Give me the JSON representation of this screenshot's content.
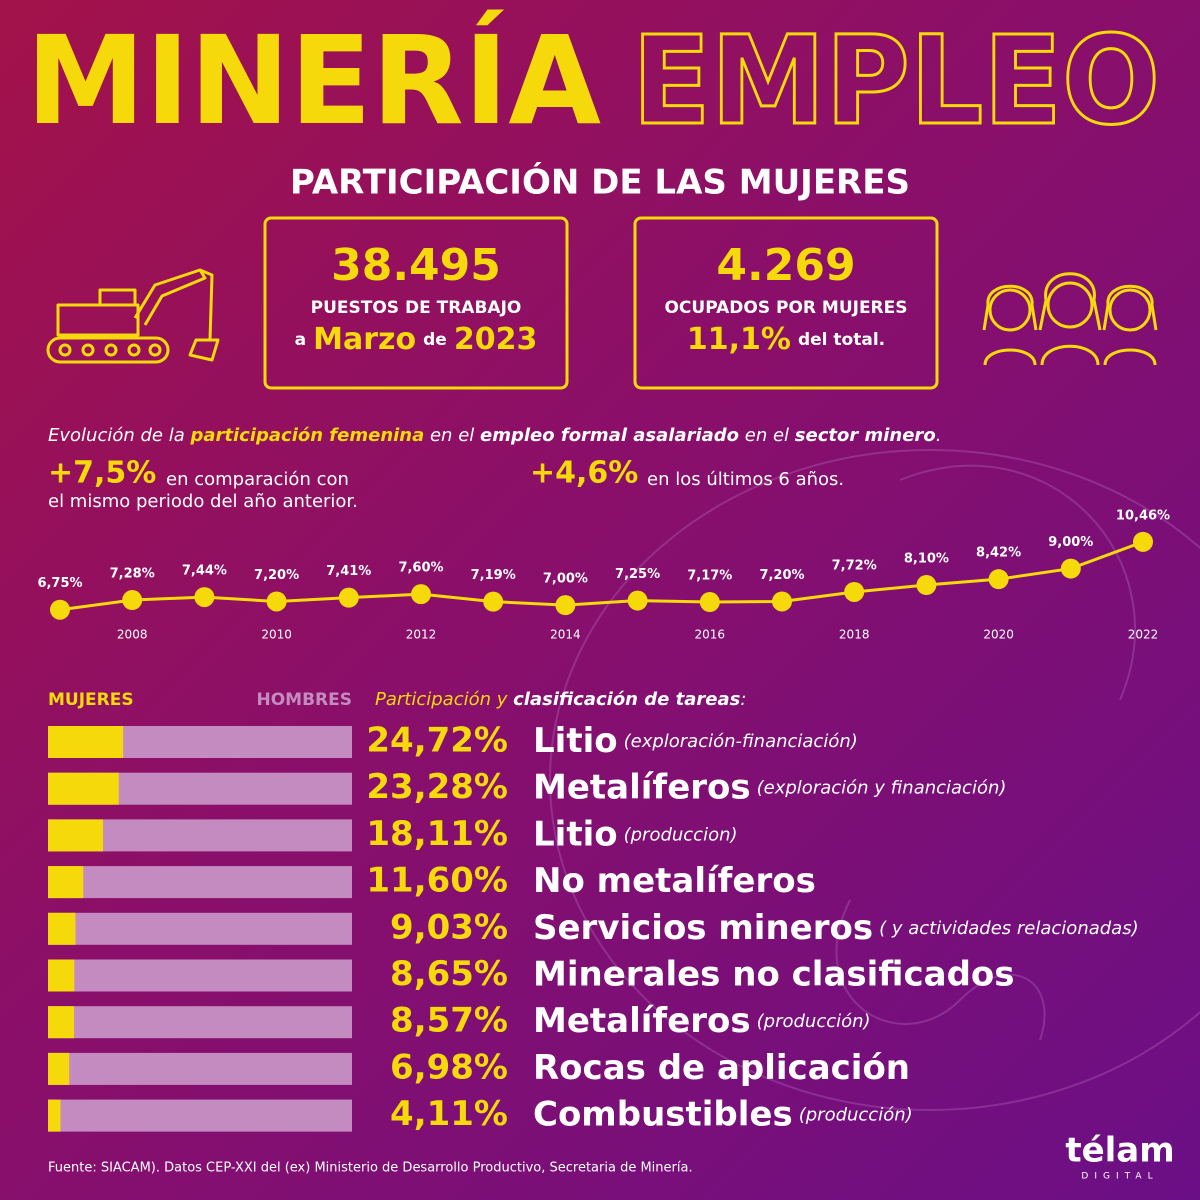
{
  "title_main": "MINERÍA",
  "title_outline": "EMPLEO",
  "subtitle": "PARTICIPACIÓN DE LAS MUJERES",
  "stats": [
    {
      "number": "38.495",
      "caption": "PUESTOS DE TRABAJO",
      "detail": [
        {
          "text": "a"
        },
        {
          "text": "Marzo",
          "emphasis": true
        },
        {
          "text": "de"
        },
        {
          "text": "2023",
          "emphasis": true
        }
      ]
    },
    {
      "number": "4.269",
      "caption": "OCUPADOS POR MUJERES",
      "detail": [
        {
          "text": "11,1%",
          "emphasis": true
        },
        {
          "text": "del total."
        }
      ]
    }
  ],
  "intro": [
    {
      "text": "Evolución de la "
    },
    {
      "text": "participación femenina",
      "bold": true,
      "color": "#f5d90a"
    },
    {
      "text": " en el "
    },
    {
      "text": "empleo formal asalariado",
      "bold": true
    },
    {
      "text": " en el "
    },
    {
      "text": "sector minero",
      "bold": true
    },
    {
      "text": "."
    }
  ],
  "highlights": [
    {
      "value": "+7,5%",
      "lines": [
        "en comparación con",
        "el mismo periodo del año anterior."
      ]
    },
    {
      "value": "+4,6%",
      "lines": [
        "en los últimos 6 años."
      ]
    }
  ],
  "chart_data": [
    {
      "type": "line",
      "x": [
        2007,
        2008,
        2009,
        2010,
        2011,
        2012,
        2013,
        2014,
        2015,
        2016,
        2017,
        2018,
        2019,
        2020,
        2021,
        2022
      ],
      "values": [
        6.75,
        7.28,
        7.44,
        7.2,
        7.41,
        7.6,
        7.19,
        7.0,
        7.25,
        7.17,
        7.2,
        7.72,
        8.1,
        8.42,
        9.0,
        10.46
      ],
      "value_labels": [
        "6,75%",
        "7,28%",
        "7,44%",
        "7,20%",
        "7,41%",
        "7,60%",
        "7,19%",
        "7,00%",
        "7,25%",
        "7,17%",
        "7,20%",
        "7,72%",
        "8,10%",
        "8,42%",
        "9,00%",
        "10,46%"
      ],
      "xlim": [
        2007,
        2022
      ],
      "xticks": [
        2008,
        2010,
        2012,
        2014,
        2016,
        2018,
        2020,
        2022
      ],
      "ylim": [
        4,
        11
      ],
      "color": "#f5d90a"
    },
    {
      "type": "bar",
      "title": [
        {
          "text": "Participación y ",
          "color": "#f5d90a"
        },
        {
          "text": "clasificación de tareas",
          "bold": true
        },
        {
          "text": ":"
        }
      ],
      "legend": [
        {
          "name": "MUJERES",
          "color": "#f5d90a"
        },
        {
          "name": "HOMBRES",
          "color": "#c48bc0"
        }
      ],
      "categories": [
        "Litio",
        "Metalíferos",
        "Litio",
        "No metalíferos",
        "Servicios mineros",
        "Minerales no clasificados",
        "Metalíferos",
        "Rocas de aplicación",
        "Combustibles"
      ],
      "notes": [
        "(exploración-financiación)",
        "(exploración y financiación)",
        "(produccion)",
        null,
        "( y actividades relacionadas)",
        null,
        "(producción)",
        null,
        "(producción)"
      ],
      "values": [
        24.72,
        23.28,
        18.11,
        11.6,
        9.03,
        8.65,
        8.57,
        6.98,
        4.11
      ],
      "value_labels": [
        "24,72%",
        "23,28%",
        "18,11%",
        "11,60%",
        "9,03%",
        "8,65%",
        "8,57%",
        "6,98%",
        "4,11%"
      ],
      "xlim": [
        0,
        100
      ]
    }
  ],
  "source": "Fuente: SIACAM). Datos CEP-XXI del (ex) Ministerio de Desarrollo Productivo, Secretaria de Minería.",
  "logo": "télam",
  "logo_sub": "DIGITAL"
}
